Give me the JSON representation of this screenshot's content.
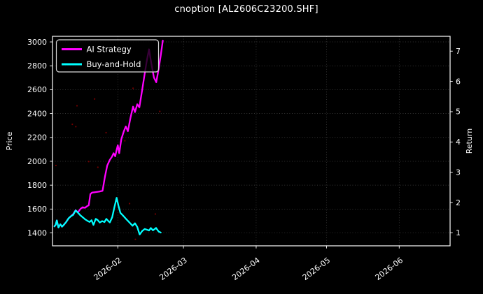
{
  "chart_data": {
    "type": "line",
    "title": "cnoption [AL2606C23200.SHF]",
    "theme": {
      "background": "#000000",
      "text": "#ffffff",
      "spine": "#ffffff",
      "grid": "rgba(255,255,255,0.28)",
      "marker_color": "#990000"
    },
    "x_axis": {
      "unit": "day_of_year_2026",
      "lim": [
        4.15,
        173.7
      ],
      "ticks": [
        {
          "day": 32,
          "label": "2026-02"
        },
        {
          "day": 60,
          "label": "2026-03"
        },
        {
          "day": 91,
          "label": "2026-04"
        },
        {
          "day": 121,
          "label": "2026-05"
        },
        {
          "day": 152,
          "label": "2026-06"
        }
      ]
    },
    "y_left": {
      "label": "Price",
      "lim": [
        1292,
        3047
      ],
      "ticks": [
        1400,
        1600,
        1800,
        2000,
        2200,
        2400,
        2600,
        2800,
        3000
      ]
    },
    "y_right": {
      "label": "Return",
      "lim": [
        0.57,
        7.49
      ],
      "ticks": [
        1,
        2,
        3,
        4,
        5,
        6,
        7
      ]
    },
    "legend": {
      "position": "upper-left"
    },
    "series": [
      {
        "name": "AI Strategy",
        "color": "#ff00ff",
        "axis": "left",
        "points": [
          [
            5,
            1455
          ],
          [
            5.5,
            1468
          ],
          [
            6,
            1505
          ],
          [
            6.7,
            1445
          ],
          [
            7.5,
            1472
          ],
          [
            8.2,
            1452
          ],
          [
            9,
            1468
          ],
          [
            10,
            1492
          ],
          [
            11,
            1522
          ],
          [
            12,
            1540
          ],
          [
            13,
            1558
          ],
          [
            14,
            1590
          ],
          [
            15,
            1572
          ],
          [
            16,
            1600
          ],
          [
            17,
            1615
          ],
          [
            18,
            1610
          ],
          [
            19,
            1625
          ],
          [
            19.6,
            1632
          ],
          [
            20.3,
            1725
          ],
          [
            21,
            1738
          ],
          [
            22.5,
            1742
          ],
          [
            24,
            1746
          ],
          [
            25.5,
            1753
          ],
          [
            26.5,
            1870
          ],
          [
            27.5,
            1965
          ],
          [
            28.6,
            2012
          ],
          [
            29.5,
            2038
          ],
          [
            30.2,
            2068
          ],
          [
            30.9,
            2042
          ],
          [
            31.5,
            2095
          ],
          [
            32,
            2135
          ],
          [
            32.6,
            2068
          ],
          [
            33.5,
            2185
          ],
          [
            34.5,
            2248
          ],
          [
            35.4,
            2292
          ],
          [
            36.3,
            2252
          ],
          [
            37.4,
            2365
          ],
          [
            38.5,
            2458
          ],
          [
            39.3,
            2412
          ],
          [
            40.3,
            2478
          ],
          [
            41.2,
            2452
          ],
          [
            42.4,
            2598
          ],
          [
            43.4,
            2725
          ],
          [
            44.4,
            2845
          ],
          [
            45.3,
            2938
          ],
          [
            46.3,
            2818
          ],
          [
            47.4,
            2702
          ],
          [
            48.4,
            2662
          ],
          [
            49.4,
            2772
          ],
          [
            50.3,
            2885
          ],
          [
            51.2,
            3012
          ]
        ]
      },
      {
        "name": "Buy-and-Hold",
        "color": "#00ffff",
        "axis": "left",
        "points": [
          [
            5,
            1455
          ],
          [
            5.5,
            1468
          ],
          [
            6,
            1505
          ],
          [
            6.7,
            1445
          ],
          [
            7.5,
            1472
          ],
          [
            8.2,
            1452
          ],
          [
            9,
            1468
          ],
          [
            10,
            1492
          ],
          [
            11,
            1522
          ],
          [
            12,
            1540
          ],
          [
            13,
            1552
          ],
          [
            14,
            1588
          ],
          [
            15,
            1570
          ],
          [
            16,
            1548
          ],
          [
            17,
            1532
          ],
          [
            18,
            1515
          ],
          [
            19,
            1502
          ],
          [
            20,
            1492
          ],
          [
            20.8,
            1506
          ],
          [
            21.6,
            1467
          ],
          [
            22.6,
            1518
          ],
          [
            23.4,
            1508
          ],
          [
            24.3,
            1487
          ],
          [
            25.3,
            1499
          ],
          [
            26.3,
            1491
          ],
          [
            27.1,
            1518
          ],
          [
            27.9,
            1500
          ],
          [
            28.6,
            1488
          ],
          [
            29.6,
            1532
          ],
          [
            30.5,
            1612
          ],
          [
            31.5,
            1694
          ],
          [
            32.3,
            1626
          ],
          [
            33.1,
            1568
          ],
          [
            34.1,
            1548
          ],
          [
            35.5,
            1518
          ],
          [
            36.8,
            1491
          ],
          [
            38.3,
            1460
          ],
          [
            39.3,
            1481
          ],
          [
            40.3,
            1450
          ],
          [
            41.3,
            1387
          ],
          [
            42.4,
            1416
          ],
          [
            43.5,
            1433
          ],
          [
            44.5,
            1426
          ],
          [
            45.3,
            1420
          ],
          [
            46.1,
            1441
          ],
          [
            47,
            1421
          ],
          [
            48.3,
            1442
          ],
          [
            49.4,
            1412
          ],
          [
            50.3,
            1403
          ]
        ]
      }
    ],
    "trade_markers": {
      "color": "#990000",
      "points": [
        [
          5.6,
          1965
        ],
        [
          12.6,
          2310
        ],
        [
          14.1,
          2290
        ],
        [
          14.6,
          2465
        ],
        [
          19.6,
          1998
        ],
        [
          22.1,
          2522
        ],
        [
          23.5,
          1950
        ],
        [
          27,
          2240
        ],
        [
          35,
          2172
        ],
        [
          37,
          1646
        ],
        [
          38.5,
          2612
        ],
        [
          39.5,
          1346
        ],
        [
          48,
          1558
        ],
        [
          49.9,
          2418
        ]
      ]
    }
  }
}
